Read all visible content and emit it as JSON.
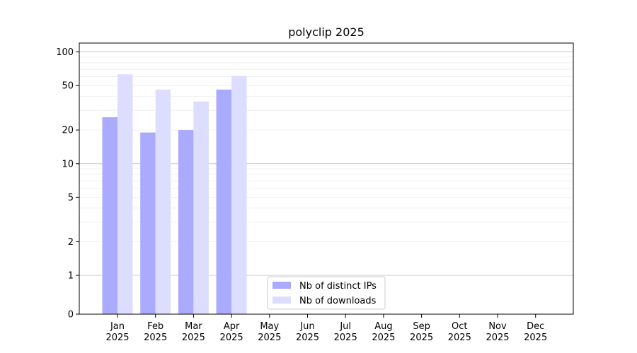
{
  "chart_data": {
    "type": "bar",
    "title": "polyclip 2025",
    "xlabel": "",
    "ylabel": "",
    "yscale": "symlog",
    "ylim": [
      0,
      120
    ],
    "yticks": [
      0,
      1,
      2,
      5,
      10,
      20,
      50,
      100
    ],
    "ytick_labels": [
      "0",
      "1",
      "2",
      "5",
      "10",
      "20",
      "50",
      "100"
    ],
    "grid": true,
    "legend_position": "lower-center",
    "categories": [
      "Jan\n2025",
      "Feb\n2025",
      "Mar\n2025",
      "Apr\n2025",
      "May\n2025",
      "Jun\n2025",
      "Jul\n2025",
      "Aug\n2025",
      "Sep\n2025",
      "Oct\n2025",
      "Nov\n2025",
      "Dec\n2025"
    ],
    "category_lines": [
      [
        "Jan",
        "2025"
      ],
      [
        "Feb",
        "2025"
      ],
      [
        "Mar",
        "2025"
      ],
      [
        "Apr",
        "2025"
      ],
      [
        "May",
        "2025"
      ],
      [
        "Jun",
        "2025"
      ],
      [
        "Jul",
        "2025"
      ],
      [
        "Aug",
        "2025"
      ],
      [
        "Sep",
        "2025"
      ],
      [
        "Oct",
        "2025"
      ],
      [
        "Nov",
        "2025"
      ],
      [
        "Dec",
        "2025"
      ]
    ],
    "series": [
      {
        "name": "Nb of distinct IPs",
        "color": "#aaaaff",
        "values": [
          26,
          19,
          20,
          46,
          null,
          null,
          null,
          null,
          null,
          null,
          null,
          null
        ]
      },
      {
        "name": "Nb of downloads",
        "color": "#ddddff",
        "values": [
          63,
          46,
          36,
          61,
          null,
          null,
          null,
          null,
          null,
          null,
          null,
          null
        ]
      }
    ]
  }
}
